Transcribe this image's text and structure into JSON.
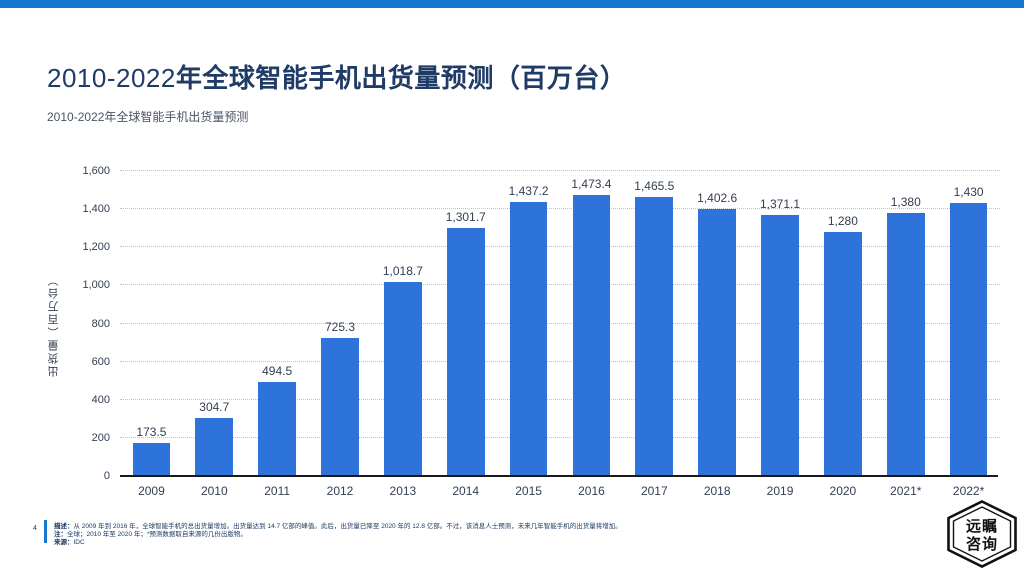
{
  "header": {
    "title_prefix": "2010-2022",
    "title_main": "年全球智能手机出货量预测（百万台）",
    "subtitle": "2010-2022年全球智能手机出货量预测"
  },
  "chart_data": {
    "type": "bar",
    "title": "2010-2022年全球智能手机出货量预测（百万台）",
    "categories": [
      "2009",
      "2010",
      "2011",
      "2012",
      "2013",
      "2014",
      "2015",
      "2016",
      "2017",
      "2018",
      "2019",
      "2020",
      "2021*",
      "2022*"
    ],
    "values": [
      173.5,
      304.7,
      494.5,
      725.3,
      1018.7,
      1301.7,
      1437.2,
      1473.4,
      1465.5,
      1402.6,
      1371.1,
      1280,
      1380,
      1430
    ],
    "value_labels": [
      "173.5",
      "304.7",
      "494.5",
      "725.3",
      "1,018.7",
      "1,301.7",
      "1,437.2",
      "1,473.4",
      "1,465.5",
      "1,402.6",
      "1,371.1",
      "1,280",
      "1,380",
      "1,430"
    ],
    "xlabel": "",
    "ylabel": "出货量（百万台）",
    "ylim": [
      0,
      1600
    ],
    "ytick_interval": 200,
    "ytick_labels": [
      "0",
      "200",
      "400",
      "600",
      "800",
      "1,000",
      "1,200",
      "1,400",
      "1,600"
    ],
    "grid": "horizontal-dotted",
    "legend": "none",
    "bar_color": "#2d73da"
  },
  "footer": {
    "page_number": "4",
    "notes": [
      {
        "label": "描述：",
        "text": "从 2009 年到 2016 年，全球智能手机的总出货量增加。出货量达到 14.7 亿部的峰值。此后，出货量已降至 2020 年的 12.8 亿部。不过，该消息人士预测，未来几年智能手机的出货量将增加。"
      },
      {
        "label": "注：",
        "text": "全球；2010 年至 2020 年；*预测数据取自来源的几份出版物。"
      },
      {
        "label": "来源：",
        "text": "IDC"
      }
    ]
  },
  "logo": {
    "row1": "远瞩",
    "row2": "咨询"
  },
  "colors": {
    "accent_bar": "#1778d2",
    "title": "#1f3b66",
    "subtitle": "#4a5365",
    "bar": "#2d73da",
    "axis_text": "#333e52",
    "gridline": "#c2c2c2",
    "baseline": "#1a1a1a",
    "footnote": "#17365d"
  }
}
